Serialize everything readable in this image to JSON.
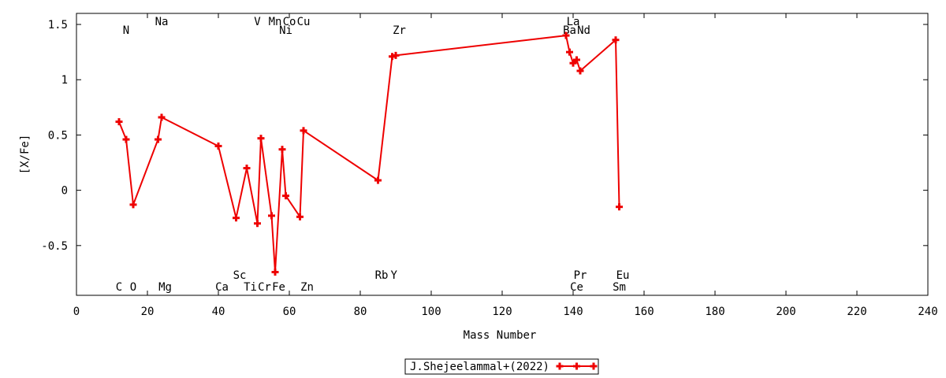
{
  "chart_data": {
    "type": "line",
    "xlabel": "Mass Number",
    "ylabel": "[X/Fe]",
    "xlim": [
      0,
      240
    ],
    "ylim": [
      -0.95,
      1.6
    ],
    "xticks": [
      0,
      20,
      40,
      60,
      80,
      100,
      120,
      140,
      160,
      180,
      200,
      220,
      240
    ],
    "yticks": [
      -0.5,
      0,
      0.5,
      1,
      1.5
    ],
    "ytick_labels": [
      "-0.5",
      "0",
      "0.5",
      "1",
      "1.5"
    ],
    "grid": false,
    "legend_position": "bottom-center",
    "series": [
      {
        "name": "J.Shejeelammal+(2022)",
        "color": "#ee0000",
        "x": [
          12,
          14,
          16,
          23,
          24,
          40,
          45,
          48,
          51,
          52,
          55,
          56,
          58,
          59,
          63,
          64,
          85,
          89,
          90,
          138,
          139,
          140,
          141,
          142,
          152,
          153
        ],
        "y": [
          0.62,
          0.46,
          -0.13,
          0.46,
          0.66,
          0.4,
          -0.25,
          0.2,
          -0.3,
          0.47,
          -0.23,
          -0.74,
          0.37,
          -0.05,
          -0.24,
          0.54,
          0.09,
          1.21,
          1.22,
          1.4,
          1.25,
          1.15,
          1.18,
          1.08,
          1.36,
          -0.15
        ]
      }
    ],
    "annotations_top": [
      {
        "text": "N",
        "x": 14,
        "row": 2
      },
      {
        "text": "Na",
        "x": 24,
        "row": 1
      },
      {
        "text": "V",
        "x": 51,
        "row": 1
      },
      {
        "text": "Mn",
        "x": 56,
        "row": 1
      },
      {
        "text": "Co",
        "x": 60,
        "row": 1
      },
      {
        "text": "Cu",
        "x": 64,
        "row": 1
      },
      {
        "text": "Ni",
        "x": 59,
        "row": 2
      },
      {
        "text": "Zr",
        "x": 91,
        "row": 2
      },
      {
        "text": "La",
        "x": 140,
        "row": 1
      },
      {
        "text": "Ba",
        "x": 139,
        "row": 2
      },
      {
        "text": "Nd",
        "x": 143,
        "row": 2
      }
    ],
    "annotations_bottom": [
      {
        "text": "Sc",
        "x": 46,
        "row": 1
      },
      {
        "text": "Rb",
        "x": 86,
        "row": 1
      },
      {
        "text": "Y",
        "x": 89.5,
        "row": 1
      },
      {
        "text": "Pr",
        "x": 142,
        "row": 1
      },
      {
        "text": "Eu",
        "x": 154,
        "row": 1
      },
      {
        "text": "C",
        "x": 12,
        "row": 2
      },
      {
        "text": "O",
        "x": 16,
        "row": 2
      },
      {
        "text": "Mg",
        "x": 25,
        "row": 2
      },
      {
        "text": "Ca",
        "x": 41,
        "row": 2
      },
      {
        "text": "Ti",
        "x": 49,
        "row": 2
      },
      {
        "text": "Cr",
        "x": 53,
        "row": 2
      },
      {
        "text": "Fe",
        "x": 57,
        "row": 2
      },
      {
        "text": "Zn",
        "x": 65,
        "row": 2
      },
      {
        "text": "Ce",
        "x": 141,
        "row": 2
      },
      {
        "text": "Sm",
        "x": 153,
        "row": 2
      }
    ]
  }
}
